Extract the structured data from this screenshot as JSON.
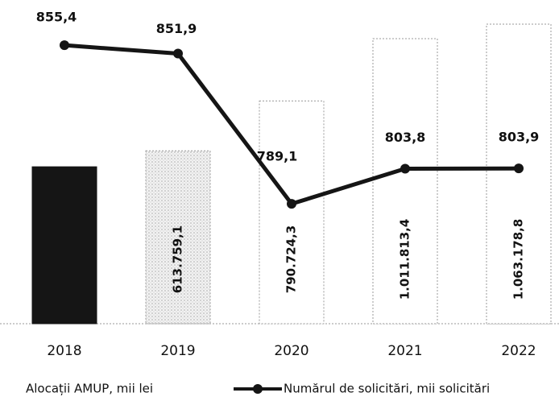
{
  "chart_data": {
    "type": "combo",
    "categories": [
      "2018",
      "2019",
      "2020",
      "2021",
      "2022"
    ],
    "series": [
      {
        "name": "Alocații AMUP, mii lei",
        "type": "bar",
        "axis": "y",
        "colors": [
          "#151515",
          "#e4e4e4",
          "#ffffff",
          "#ffffff",
          "#ffffff"
        ],
        "values": [
          557000,
          613759.1,
          790724.3,
          1011813.4,
          1063178.8
        ],
        "value_labels": [
          null,
          "613.759,1",
          "790.724,3",
          "1.011.813,4",
          "1.063.178,8"
        ]
      },
      {
        "name": "Numărul de solicitări, mii solicitări",
        "type": "line",
        "axis": "y2",
        "color": "#151515",
        "values": [
          855.4,
          851.9,
          789.1,
          803.8,
          803.9
        ],
        "value_labels": [
          "855,4",
          "851,9",
          "789,1",
          "803,8",
          "803,9"
        ]
      }
    ],
    "ylim": [
      0,
      1149000
    ],
    "y2lim": [
      739,
      874.3
    ]
  }
}
